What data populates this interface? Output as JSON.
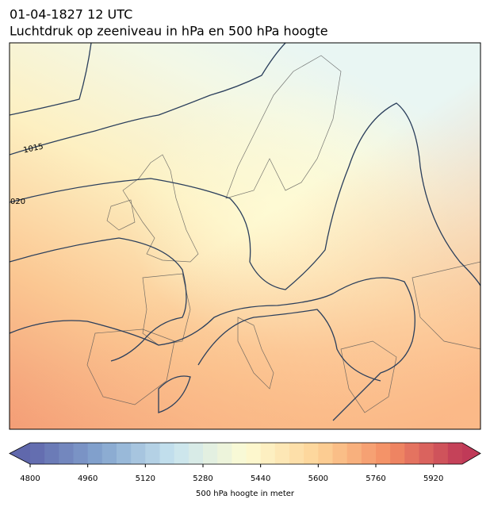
{
  "header": {
    "title": "01-04-1827 12 UTC",
    "subtitle": "Luchtdruk op zeeniveau in hPa en 500 hPa hoogte"
  },
  "map": {
    "contour_labels": [
      "1015",
      "020"
    ]
  },
  "colorbar": {
    "label": "500 hPa hoogte in meter",
    "lim": [
      4800,
      6000
    ],
    "ticks": [
      4800,
      4960,
      5120,
      5280,
      5440,
      5600,
      5760,
      5920
    ],
    "colors": [
      "#6068ac",
      "#85a6cf",
      "#c8e4ef",
      "#fdfbd3",
      "#fdd397",
      "#f38c63",
      "#c03a58"
    ]
  }
}
